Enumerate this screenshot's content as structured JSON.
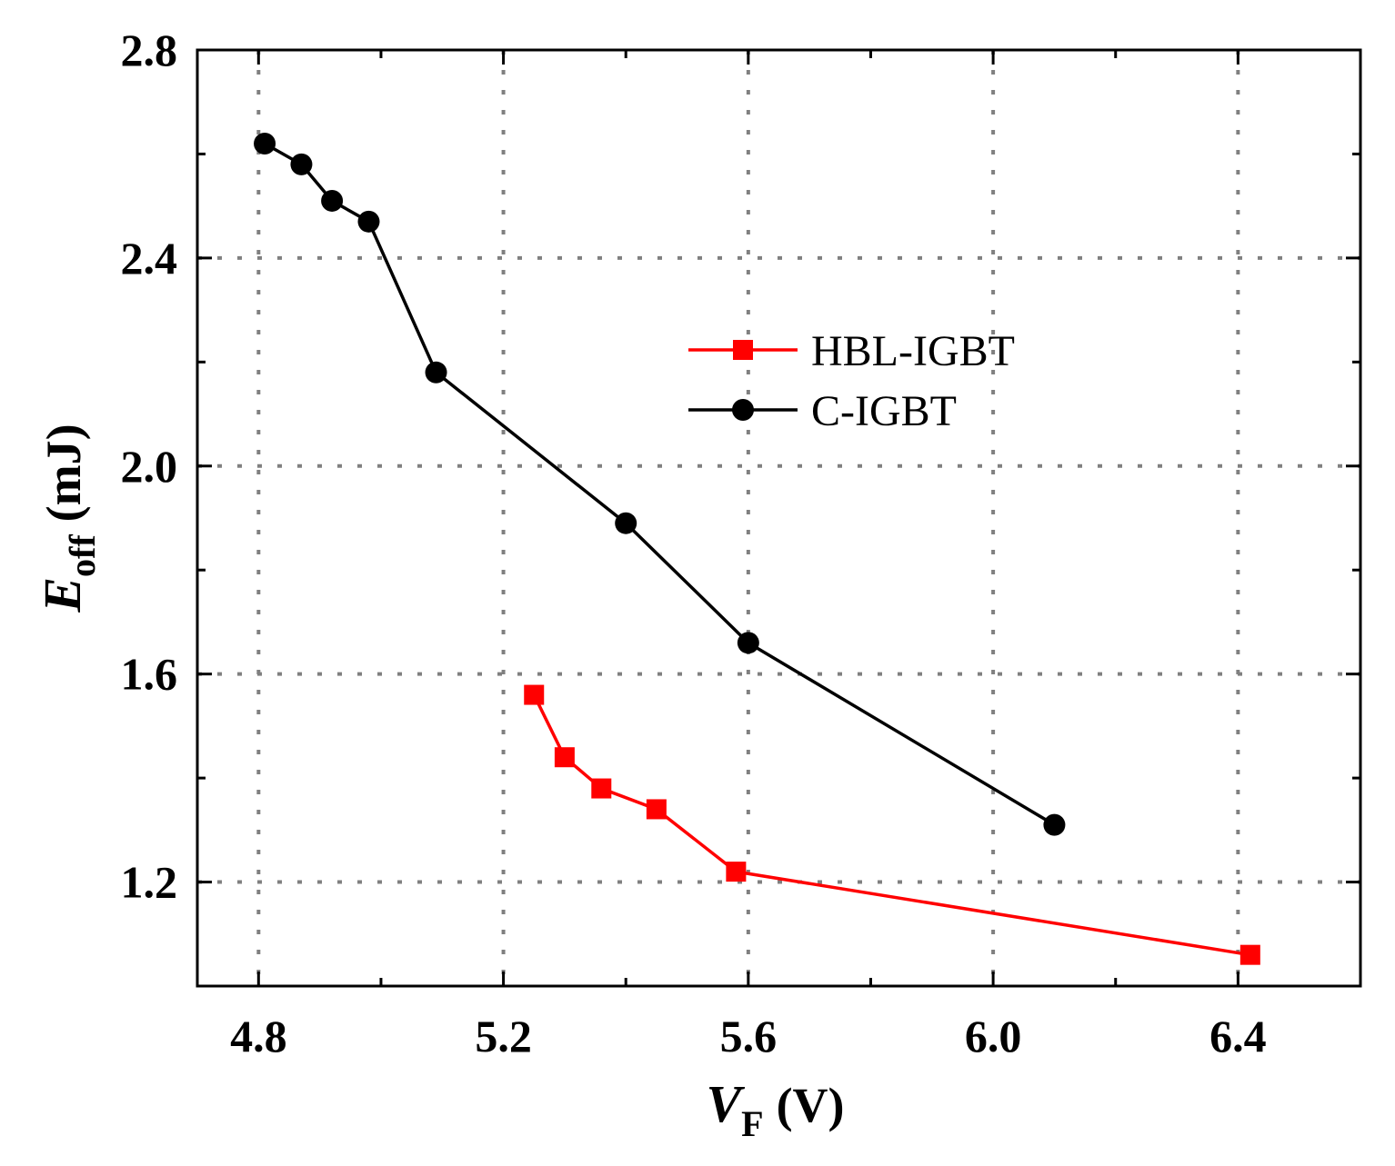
{
  "chart_data": {
    "type": "line",
    "title": "",
    "xlabel": {
      "symbol": "V",
      "subscript": "F",
      "unit": "(V)"
    },
    "ylabel": {
      "symbol": "E",
      "subscript": "off",
      "unit": "(mJ)"
    },
    "xlim": [
      4.7,
      6.6
    ],
    "ylim": [
      1.0,
      2.8
    ],
    "xticks": [
      "4.8",
      "5.2",
      "5.6",
      "6.0",
      "6.4"
    ],
    "yticks": [
      "1.2",
      "1.6",
      "2.0",
      "2.4",
      "2.8"
    ],
    "x_minor_step": 0.2,
    "y_minor_step": 0.2,
    "grid": true,
    "legend_position": "center-right",
    "series": [
      {
        "name": "HBL-IGBT",
        "color": "#ff0000",
        "marker": "square",
        "x": [
          5.25,
          5.3,
          5.36,
          5.45,
          5.58,
          6.42
        ],
        "y": [
          1.56,
          1.44,
          1.38,
          1.34,
          1.22,
          1.06
        ]
      },
      {
        "name": "C-IGBT",
        "color": "#000000",
        "marker": "circle",
        "x": [
          4.81,
          4.87,
          4.92,
          4.98,
          5.09,
          5.4,
          5.6,
          6.1
        ],
        "y": [
          2.62,
          2.58,
          2.51,
          2.47,
          2.18,
          1.89,
          1.66,
          1.31
        ]
      }
    ]
  }
}
